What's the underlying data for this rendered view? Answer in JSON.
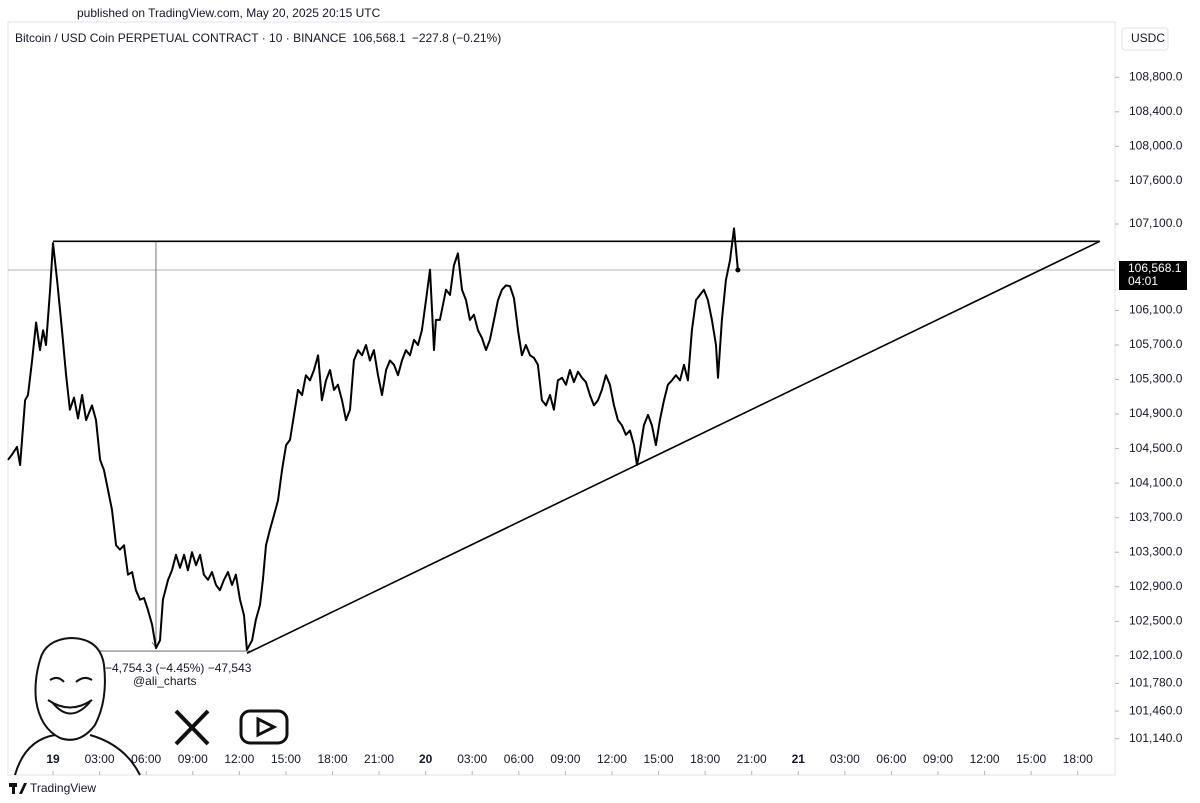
{
  "header": {
    "published": "published on TradingView.com, May 20, 2025 20:15 UTC",
    "symbol": "Bitcoin / USD Coin PERPETUAL CONTRACT · 10 · BINANCE",
    "price": "106,568.1",
    "change": "−227.8 (−0.21%)",
    "currency": "USDC"
  },
  "watermark": "@ali_charts",
  "footer": "TradingView",
  "chart_data": {
    "type": "line",
    "color": "#000000",
    "x": [
      -2.9,
      -2.64,
      -2.32,
      -2.12,
      -1.8,
      -1.61,
      -1.35,
      -1.09,
      -0.84,
      -0.64,
      -0.45,
      -0.19,
      0,
      0.26,
      0.58,
      0.84,
      1.09,
      1.35,
      1.61,
      1.87,
      2.13,
      2.51,
      2.77,
      3.03,
      3.28,
      3.54,
      3.8,
      4.06,
      4.31,
      4.57,
      4.83,
      5.09,
      5.34,
      5.6,
      5.86,
      6.12,
      6.38,
      6.63,
      6.89,
      7.08,
      7.41,
      7.66,
      7.92,
      8.18,
      8.44,
      8.69,
      8.95,
      9.21,
      9.47,
      9.72,
      9.98,
      10.24,
      10.5,
      10.75,
      11.01,
      11.27,
      11.53,
      11.78,
      12.04,
      12.3,
      12.49,
      12.82,
      13.07,
      13.33,
      13.52,
      13.72,
      13.97,
      14.23,
      14.49,
      14.75,
      15.01,
      15.26,
      15.52,
      15.78,
      16.04,
      16.29,
      16.55,
      16.81,
      17.07,
      17.32,
      17.58,
      17.84,
      18.1,
      18.35,
      18.61,
      18.87,
      19.13,
      19.38,
      19.64,
      19.9,
      20.16,
      20.41,
      20.67,
      20.93,
      21.19,
      21.45,
      21.7,
      21.96,
      22.22,
      22.48,
      22.73,
      22.99,
      23.25,
      23.51,
      23.76,
      24.02,
      24.28,
      24.54,
      24.66,
      24.92,
      25.31,
      25.57,
      25.82,
      26.08,
      26.34,
      26.6,
      26.85,
      27.11,
      27.37,
      27.63,
      27.89,
      28.14,
      28.4,
      28.66,
      28.92,
      29.17,
      29.43,
      29.69,
      29.95,
      30.2,
      30.46,
      30.72,
      30.98,
      31.23,
      31.49,
      31.75,
      32.01,
      32.26,
      32.52,
      32.78,
      33.04,
      33.29,
      33.55,
      33.81,
      34.07,
      34.32,
      34.58,
      34.84,
      35.1,
      35.35,
      35.61,
      35.87,
      36.13,
      36.38,
      36.64,
      36.9,
      37.16,
      37.42,
      37.61,
      37.8,
      38.06,
      38.32,
      38.57,
      38.83,
      39.09,
      39.35,
      39.6,
      39.86,
      40.12,
      40.38,
      40.64,
      40.89,
      41.15,
      41.41,
      41.67,
      41.92,
      42.18,
      42.44,
      42.7,
      42.83,
      43.08,
      43.34,
      43.6,
      43.86,
      44.11
    ],
    "values": [
      104370,
      104430,
      104520,
      104310,
      105060,
      105120,
      105520,
      105960,
      105640,
      105870,
      105700,
      106340,
      106880,
      106450,
      105870,
      105350,
      104950,
      105090,
      104850,
      105120,
      104830,
      105000,
      104830,
      104370,
      104250,
      104020,
      103790,
      103380,
      103330,
      103380,
      103040,
      103070,
      102860,
      102750,
      102770,
      102630,
      102460,
      102190,
      102280,
      102750,
      102980,
      103090,
      103270,
      103120,
      103270,
      103090,
      103300,
      103150,
      103270,
      103040,
      102980,
      103070,
      102920,
      102860,
      102980,
      103070,
      102920,
      103040,
      102750,
      102570,
      102170,
      102280,
      102520,
      102690,
      102980,
      103380,
      103560,
      103730,
      103900,
      104250,
      104540,
      104600,
      104890,
      105180,
      105120,
      105350,
      105290,
      105410,
      105580,
      105060,
      105290,
      105410,
      105180,
      105240,
      105060,
      104830,
      104950,
      105520,
      105640,
      105580,
      105700,
      105520,
      105640,
      105350,
      105120,
      105410,
      105520,
      105470,
      105350,
      105520,
      105640,
      105580,
      105760,
      105700,
      105870,
      106220,
      106570,
      105640,
      105990,
      105990,
      106340,
      106280,
      106620,
      106760,
      106340,
      106220,
      105990,
      106050,
      105870,
      105780,
      105640,
      105760,
      105990,
      106220,
      106340,
      106390,
      106380,
      106240,
      105870,
      105580,
      105700,
      105580,
      105550,
      105470,
      105060,
      105000,
      105120,
      104950,
      105290,
      105320,
      105240,
      105410,
      105270,
      105390,
      105320,
      105270,
      105120,
      105000,
      105060,
      105180,
      105350,
      105240,
      105000,
      104830,
      104770,
      104660,
      104710,
      104540,
      104310,
      104480,
      104770,
      104890,
      104770,
      104540,
      104830,
      105060,
      105240,
      105290,
      105350,
      105290,
      105470,
      105290,
      105870,
      106220,
      106280,
      106340,
      106220,
      105990,
      105700,
      105320,
      105990,
      106450,
      106680,
      107050,
      106568.1
    ],
    "lines": [
      {
        "x": [
          0,
          67.42
        ],
        "values": [
          106900,
          106900
        ]
      },
      {
        "x": [
          12.49,
          67.42
        ],
        "values": [
          102130,
          106900
        ]
      }
    ],
    "measure": {
      "x": 6.63,
      "from": 106900,
      "to": 102190,
      "label": "−4,754.3 (−4.45%) −47,543"
    },
    "last_price": {
      "value": 106568.1,
      "label": "106,568.1"
    },
    "countdown": "04:01",
    "xlim": [
      -2.9,
      68.4
    ],
    "ylim": [
      100720,
      109440
    ],
    "xticks": [
      {
        "value": 0,
        "label": "19"
      },
      {
        "value": 3,
        "label": "03:00"
      },
      {
        "value": 6,
        "label": "06:00"
      },
      {
        "value": 9,
        "label": "09:00"
      },
      {
        "value": 12,
        "label": "12:00"
      },
      {
        "value": 15,
        "label": "15:00"
      },
      {
        "value": 18,
        "label": "18:00"
      },
      {
        "value": 21,
        "label": "21:00"
      },
      {
        "value": 24,
        "label": "20"
      },
      {
        "value": 27,
        "label": "03:00"
      },
      {
        "value": 30,
        "label": "06:00"
      },
      {
        "value": 33,
        "label": "09:00"
      },
      {
        "value": 36,
        "label": "12:00"
      },
      {
        "value": 39,
        "label": "15:00"
      },
      {
        "value": 42,
        "label": "18:00"
      },
      {
        "value": 45,
        "label": "21:00"
      },
      {
        "value": 48,
        "label": "21"
      },
      {
        "value": 51,
        "label": "03:00"
      },
      {
        "value": 54,
        "label": "06:00"
      },
      {
        "value": 57,
        "label": "09:00"
      },
      {
        "value": 60,
        "label": "12:00"
      },
      {
        "value": 63,
        "label": "15:00"
      },
      {
        "value": 66,
        "label": "18:00"
      }
    ],
    "yticks": [
      {
        "value": 108800,
        "label": "108,800.0"
      },
      {
        "value": 108400,
        "label": "108,400.0"
      },
      {
        "value": 108000,
        "label": "108,000.0"
      },
      {
        "value": 107600,
        "label": "107,600.0"
      },
      {
        "value": 107100,
        "label": "107,100.0"
      },
      {
        "value": 106100,
        "label": "106,100.0"
      },
      {
        "value": 105700,
        "label": "105,700.0"
      },
      {
        "value": 105300,
        "label": "105,300.0"
      },
      {
        "value": 104900,
        "label": "104,900.0"
      },
      {
        "value": 104500,
        "label": "104,500.0"
      },
      {
        "value": 104100,
        "label": "104,100.0"
      },
      {
        "value": 103700,
        "label": "103,700.0"
      },
      {
        "value": 103300,
        "label": "103,300.0"
      },
      {
        "value": 102900,
        "label": "102,900.0"
      },
      {
        "value": 102500,
        "label": "102,500.0"
      },
      {
        "value": 102100,
        "label": "102,100.0"
      },
      {
        "value": 101780,
        "label": "101,780.0"
      },
      {
        "value": 101460,
        "label": "101,460.0"
      },
      {
        "value": 101140,
        "label": "101,140.0"
      }
    ]
  }
}
